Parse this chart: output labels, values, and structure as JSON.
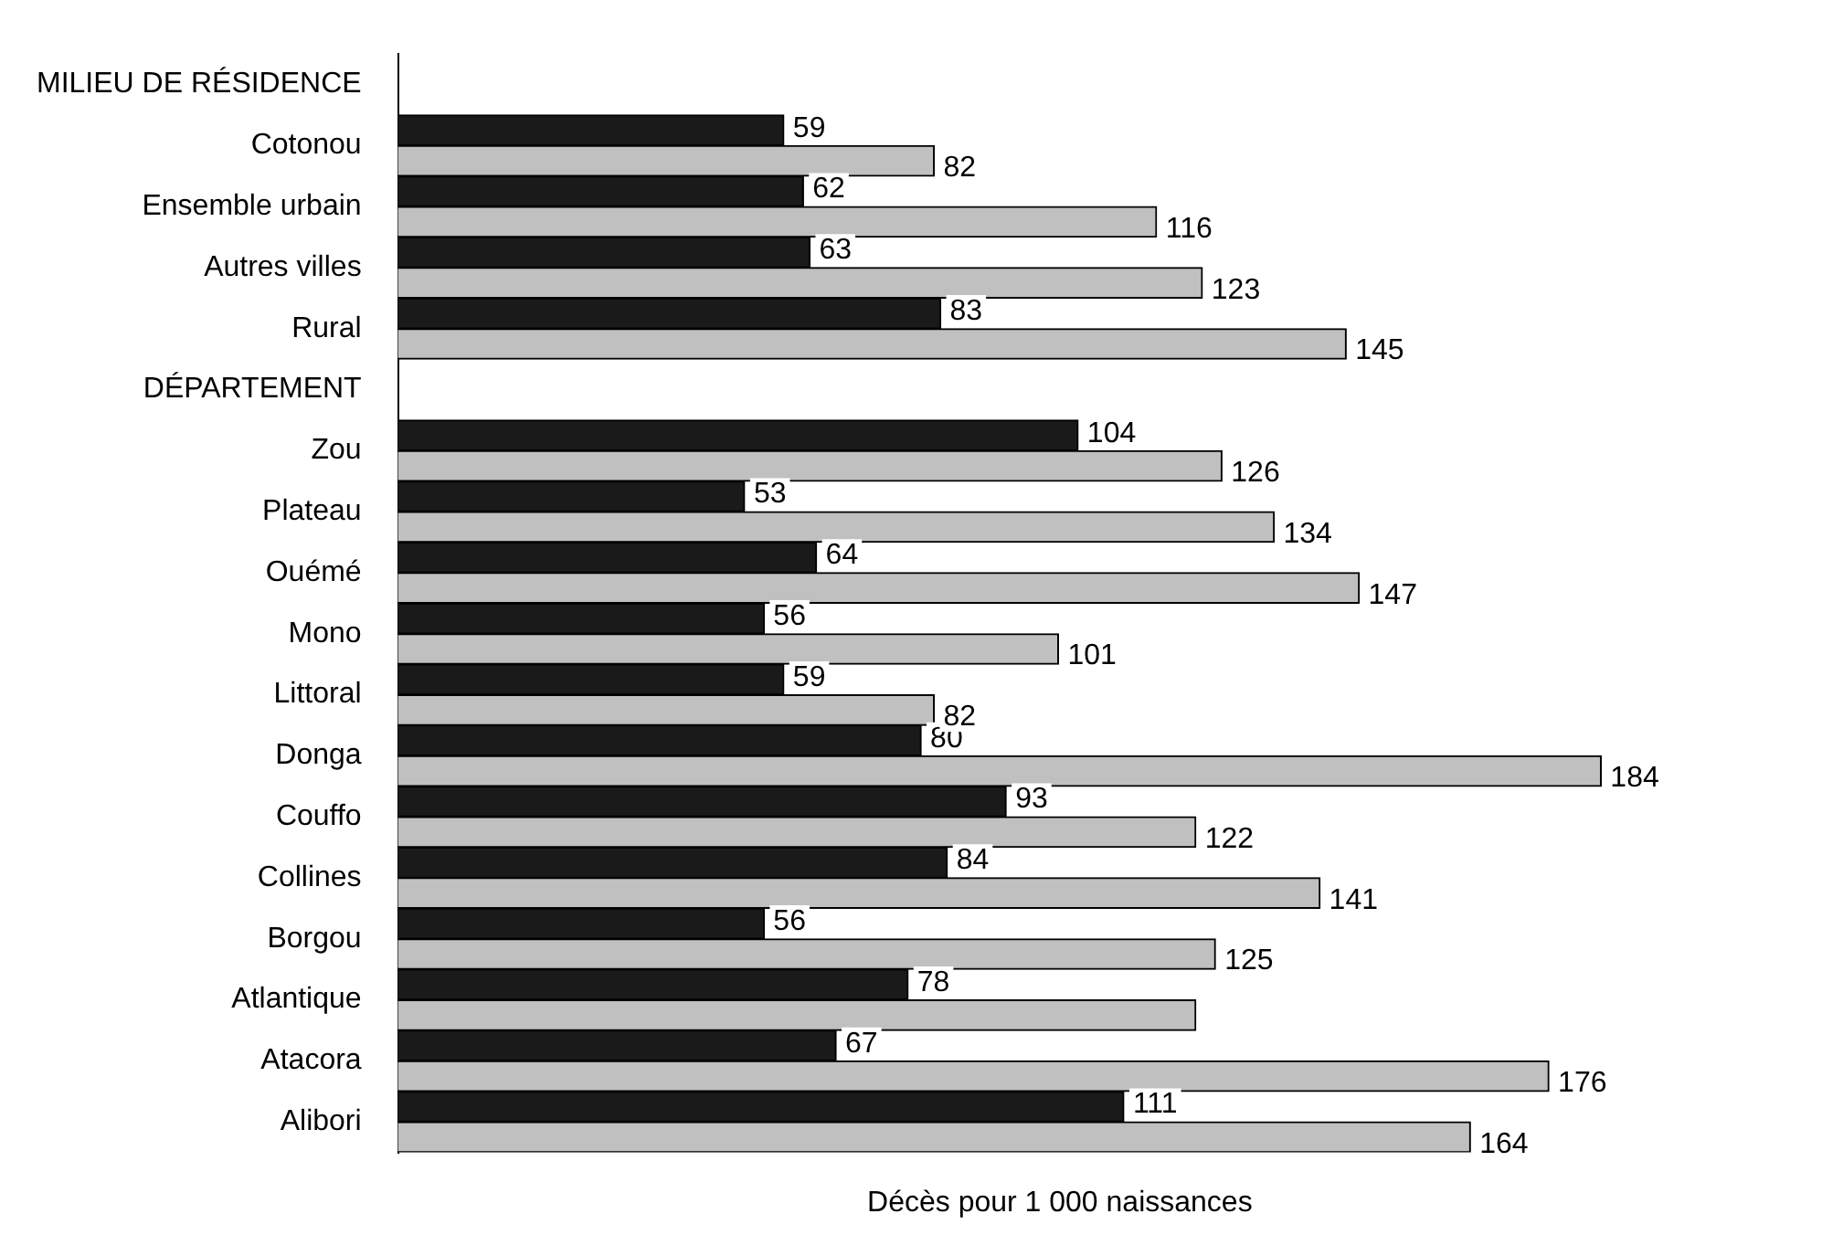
{
  "chart_data": {
    "type": "bar",
    "orientation": "horizontal",
    "xlabel": "Décès pour 1 000 naissances",
    "tick_labels": "y",
    "legend": false,
    "grid": false,
    "categories": [
      "MILIEU DE RÉSIDENCE",
      "Cotonou",
      "Ensemble urbain",
      "Autres villes",
      "Rural",
      "DÉPARTEMENT",
      "Zou",
      "Plateau",
      "Ouémé",
      "Mono",
      "Littoral",
      "Donga",
      "Couffo",
      "Collines",
      "Borgou",
      "Atlantique",
      "Atacora",
      "Alibori"
    ],
    "series": [
      {
        "color": "#1a1a1a",
        "values": [
          null,
          59,
          62,
          63,
          83,
          null,
          104,
          53,
          64,
          56,
          59,
          80,
          93,
          84,
          56,
          78,
          67,
          111
        ],
        "value_labels": [
          null,
          "59",
          "62",
          "63",
          "83",
          null,
          "104",
          "53",
          "64",
          "56",
          "59",
          "80",
          "93",
          "84",
          "56",
          "78",
          "67",
          "111"
        ]
      },
      {
        "color": "#c0c0c0",
        "values": [
          null,
          82,
          116,
          123,
          145,
          null,
          126,
          134,
          147,
          101,
          82,
          184,
          122,
          141,
          125,
          122,
          176,
          164
        ],
        "value_labels": [
          null,
          "82",
          "116",
          "123",
          "145",
          null,
          "126",
          "134",
          "147",
          "101",
          "82",
          "184",
          "122",
          "141",
          "125",
          null,
          "176",
          "164"
        ]
      }
    ]
  }
}
